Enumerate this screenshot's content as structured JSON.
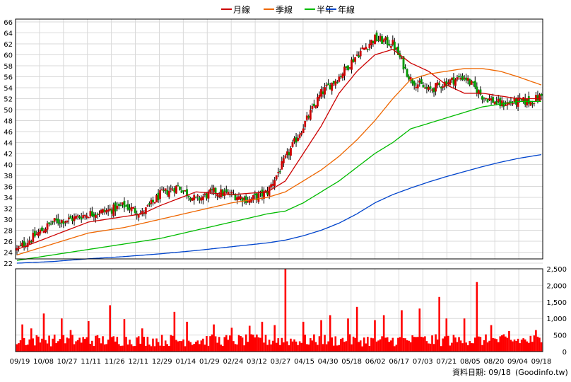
{
  "legend": {
    "items": [
      {
        "label": "月線",
        "color": "#cc0000"
      },
      {
        "label": "季線",
        "color": "#ee6600"
      },
      {
        "label": "半年",
        "color": "#00bb00"
      },
      {
        "label": "年線",
        "color": "#0044cc"
      }
    ]
  },
  "footer": {
    "source": "資料日期: 09/18",
    "site": "(Goodinfo.tw)"
  },
  "chart_data": [
    {
      "type": "candlestick",
      "title": "",
      "ylim": [
        22,
        66
      ],
      "y_ticks": [
        22,
        24,
        26,
        28,
        30,
        32,
        34,
        36,
        38,
        40,
        42,
        44,
        46,
        48,
        50,
        52,
        54,
        56,
        58,
        60,
        62,
        64,
        66
      ],
      "x_labels": [
        "09/19",
        "10/08",
        "10/27",
        "11/11",
        "11/26",
        "12/11",
        "12/29",
        "01/14",
        "01/29",
        "02/24",
        "03/12",
        "03/27",
        "04/15",
        "04/30",
        "05/18",
        "06/02",
        "06/17",
        "07/03",
        "07/21",
        "08/05",
        "08/20",
        "09/04",
        "09/18"
      ],
      "grid": true,
      "legend_position": "top-center",
      "close_anchors": [
        [
          0,
          24.5
        ],
        [
          10,
          27
        ],
        [
          20,
          29.5
        ],
        [
          30,
          30
        ],
        [
          40,
          31
        ],
        [
          50,
          31.5
        ],
        [
          60,
          32.5
        ],
        [
          70,
          31
        ],
        [
          80,
          34.5
        ],
        [
          90,
          36
        ],
        [
          100,
          33.5
        ],
        [
          110,
          35
        ],
        [
          120,
          34.5
        ],
        [
          130,
          33.5
        ],
        [
          140,
          35
        ],
        [
          150,
          41
        ],
        [
          160,
          47
        ],
        [
          170,
          53
        ],
        [
          180,
          56
        ],
        [
          190,
          60
        ],
        [
          200,
          63
        ],
        [
          210,
          62
        ],
        [
          220,
          55.5
        ],
        [
          230,
          53.5
        ],
        [
          240,
          55
        ],
        [
          250,
          56
        ],
        [
          260,
          52.5
        ],
        [
          270,
          51
        ],
        [
          280,
          51.5
        ],
        [
          287,
          51.5
        ],
        [
          293,
          52.5
        ]
      ],
      "ma_series": [
        {
          "name": "月線",
          "color": "#cc0000",
          "anchors": [
            [
              0,
              24.5
            ],
            [
              20,
              27
            ],
            [
              40,
              29.5
            ],
            [
              60,
              30.5
            ],
            [
              70,
              31
            ],
            [
              80,
              32.5
            ],
            [
              100,
              35
            ],
            [
              120,
              34.5
            ],
            [
              140,
              35
            ],
            [
              150,
              37
            ],
            [
              160,
              42
            ],
            [
              170,
              47
            ],
            [
              180,
              53
            ],
            [
              190,
              57
            ],
            [
              200,
              60
            ],
            [
              210,
              61
            ],
            [
              220,
              58.5
            ],
            [
              230,
              57
            ],
            [
              240,
              54.5
            ],
            [
              250,
              53
            ],
            [
              260,
              53
            ],
            [
              270,
              52.5
            ],
            [
              280,
              52
            ],
            [
              293,
              52
            ]
          ]
        },
        {
          "name": "季線",
          "color": "#ee6600",
          "anchors": [
            [
              0,
              23.5
            ],
            [
              20,
              25.5
            ],
            [
              40,
              27.5
            ],
            [
              60,
              28.5
            ],
            [
              80,
              30
            ],
            [
              100,
              31.5
            ],
            [
              120,
              33
            ],
            [
              140,
              34
            ],
            [
              150,
              35
            ],
            [
              160,
              37
            ],
            [
              170,
              39
            ],
            [
              180,
              41.5
            ],
            [
              190,
              44.5
            ],
            [
              200,
              48
            ],
            [
              210,
              52
            ],
            [
              220,
              55.5
            ],
            [
              230,
              56.5
            ],
            [
              240,
              57
            ],
            [
              250,
              57.5
            ],
            [
              260,
              57.5
            ],
            [
              270,
              57
            ],
            [
              280,
              56
            ],
            [
              293,
              54.5
            ]
          ]
        },
        {
          "name": "半年",
          "color": "#00bb00",
          "anchors": [
            [
              0,
              22.5
            ],
            [
              20,
              23.5
            ],
            [
              40,
              24.5
            ],
            [
              60,
              25.5
            ],
            [
              80,
              26.5
            ],
            [
              100,
              28
            ],
            [
              120,
              29.5
            ],
            [
              140,
              31
            ],
            [
              150,
              31.5
            ],
            [
              160,
              33
            ],
            [
              170,
              35
            ],
            [
              180,
              37
            ],
            [
              190,
              39.5
            ],
            [
              200,
              42
            ],
            [
              210,
              44
            ],
            [
              220,
              46.5
            ],
            [
              230,
              47.5
            ],
            [
              240,
              48.5
            ],
            [
              250,
              49.5
            ],
            [
              260,
              50.5
            ],
            [
              270,
              51
            ],
            [
              280,
              51.5
            ],
            [
              293,
              51.5
            ]
          ]
        },
        {
          "name": "年線",
          "color": "#0044cc",
          "anchors": [
            [
              0,
              22
            ],
            [
              20,
              22.3
            ],
            [
              40,
              22.8
            ],
            [
              60,
              23.2
            ],
            [
              80,
              23.7
            ],
            [
              100,
              24.3
            ],
            [
              120,
              25
            ],
            [
              140,
              25.7
            ],
            [
              150,
              26.2
            ],
            [
              160,
              27
            ],
            [
              170,
              28
            ],
            [
              180,
              29.3
            ],
            [
              190,
              31
            ],
            [
              200,
              33
            ],
            [
              210,
              34.5
            ],
            [
              220,
              35.7
            ],
            [
              230,
              36.8
            ],
            [
              240,
              37.8
            ],
            [
              250,
              38.7
            ],
            [
              260,
              39.6
            ],
            [
              270,
              40.4
            ],
            [
              280,
              41.1
            ],
            [
              293,
              41.8
            ]
          ]
        }
      ]
    },
    {
      "type": "bar",
      "title": "",
      "ylim": [
        0,
        2500
      ],
      "y_ticks": [
        0,
        500,
        1000,
        1500,
        2000,
        2500
      ],
      "y_tick_labels": [
        "0",
        "500",
        "1,000",
        "1,500",
        "2,000",
        "2,500"
      ],
      "bar_color": "#ff0000",
      "baseline_volume": 350,
      "spikes": [
        [
          3,
          820
        ],
        [
          8,
          700
        ],
        [
          15,
          1150
        ],
        [
          25,
          1000
        ],
        [
          30,
          650
        ],
        [
          40,
          920
        ],
        [
          52,
          1400
        ],
        [
          60,
          980
        ],
        [
          70,
          700
        ],
        [
          88,
          1200
        ],
        [
          95,
          900
        ],
        [
          110,
          820
        ],
        [
          120,
          720
        ],
        [
          130,
          780
        ],
        [
          137,
          900
        ],
        [
          144,
          800
        ],
        [
          150,
          2550
        ],
        [
          160,
          900
        ],
        [
          170,
          950
        ],
        [
          175,
          1100
        ],
        [
          185,
          1000
        ],
        [
          190,
          1350
        ],
        [
          200,
          950
        ],
        [
          205,
          1100
        ],
        [
          215,
          1250
        ],
        [
          225,
          1300
        ],
        [
          236,
          1650
        ],
        [
          240,
          1000
        ],
        [
          250,
          1000
        ],
        [
          257,
          2100
        ],
        [
          265,
          800
        ],
        [
          275,
          620
        ],
        [
          290,
          650
        ]
      ]
    }
  ]
}
